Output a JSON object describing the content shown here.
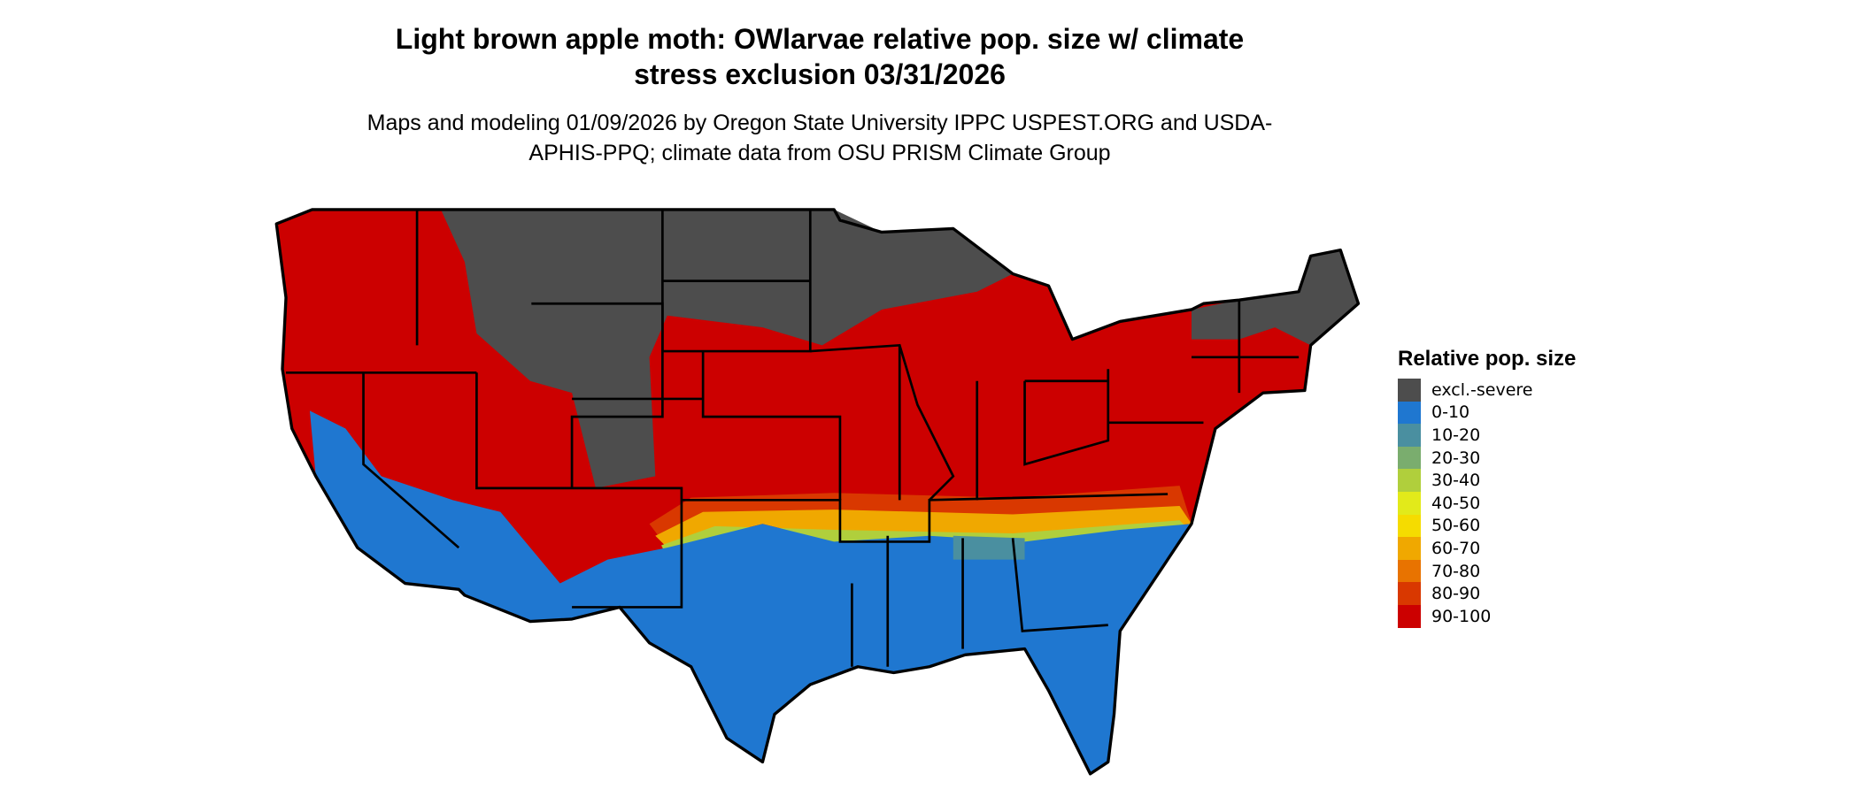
{
  "map": {
    "title": "Light brown apple moth: OWlarvae relative pop. size w/ climate stress exclusion 03/31/2026",
    "subtitle": "Maps and modeling 01/09/2026 by Oregon State University IPPC USPEST.ORG and USDA-APHIS-PPQ; climate data from OSU PRISM Climate Group",
    "legend": {
      "title": "Relative pop. size",
      "items": [
        {
          "label": "excl.-severe",
          "color": "#4d4d4d"
        },
        {
          "label": "0-10",
          "color": "#1f77d0"
        },
        {
          "label": "10-20",
          "color": "#4a8fa0"
        },
        {
          "label": "20-30",
          "color": "#7aad6e"
        },
        {
          "label": "30-40",
          "color": "#b0cf3c"
        },
        {
          "label": "40-50",
          "color": "#e2ea1a"
        },
        {
          "label": "50-60",
          "color": "#f5dc00"
        },
        {
          "label": "60-70",
          "color": "#f0a800"
        },
        {
          "label": "70-80",
          "color": "#e87300"
        },
        {
          "label": "80-90",
          "color": "#d93800"
        },
        {
          "label": "90-100",
          "color": "#cc0000"
        }
      ]
    }
  }
}
